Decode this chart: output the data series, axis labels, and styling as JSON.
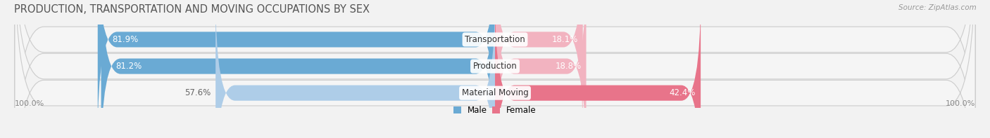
{
  "title": "PRODUCTION, TRANSPORTATION AND MOVING OCCUPATIONS BY SEX",
  "source": "Source: ZipAtlas.com",
  "categories": [
    "Transportation",
    "Production",
    "Material Moving"
  ],
  "male_values": [
    81.9,
    81.2,
    57.6
  ],
  "female_values": [
    18.1,
    18.8,
    42.4
  ],
  "male_color_solid": "#6aaad4",
  "male_color_light": "#aecde8",
  "female_color_solid": "#e8748a",
  "female_color_light": "#f2b3c0",
  "bar_height": 0.58,
  "bg_bar_color": "#e8e8e8",
  "bg_bar_edge": "#d8d8d8",
  "row_bg": "#f5f5f5",
  "background_color": "#f2f2f2",
  "title_fontsize": 10.5,
  "label_fontsize": 8.5,
  "cat_fontsize": 8.5,
  "axis_label_fontsize": 8,
  "legend_fontsize": 8.5,
  "source_fontsize": 7.5,
  "x_left_label": "100.0%",
  "x_right_label": "100.0%"
}
